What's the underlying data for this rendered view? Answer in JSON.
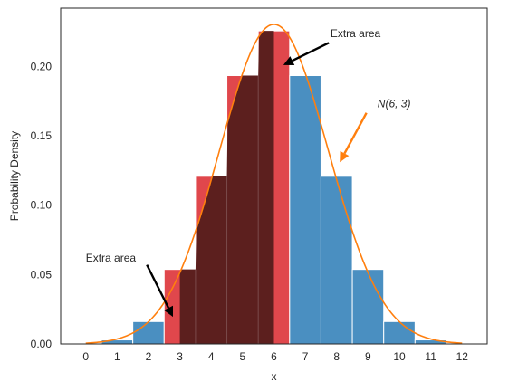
{
  "chart_data": {
    "type": "bar",
    "xlabel": "x",
    "ylabel": "Probability Density",
    "xlim": [
      -0.8,
      12.8
    ],
    "ylim": [
      0,
      0.242
    ],
    "xticks": [
      "0",
      "1",
      "2",
      "3",
      "4",
      "5",
      "6",
      "7",
      "8",
      "9",
      "10",
      "11",
      "12"
    ],
    "yticks": [
      "0.00",
      "0.05",
      "0.10",
      "0.15",
      "0.20"
    ],
    "grid": false,
    "bars": [
      {
        "x": 1,
        "value": 0.0029,
        "fill": "blue"
      },
      {
        "x": 2,
        "value": 0.0161,
        "fill": "blue"
      },
      {
        "x": 3,
        "value": 0.0537,
        "fill": "red-under-dark"
      },
      {
        "x": 4,
        "value": 0.1208,
        "fill": "red-under-dark"
      },
      {
        "x": 5,
        "value": 0.1934,
        "fill": "red-under-dark"
      },
      {
        "x": 6,
        "value": 0.2256,
        "fill": "red-under-dark"
      },
      {
        "x": 7,
        "value": 0.1934,
        "fill": "blue"
      },
      {
        "x": 8,
        "value": 0.1208,
        "fill": "blue"
      },
      {
        "x": 9,
        "value": 0.0537,
        "fill": "blue"
      },
      {
        "x": 10,
        "value": 0.0161,
        "fill": "blue"
      },
      {
        "x": 11,
        "value": 0.0029,
        "fill": "blue"
      }
    ],
    "red_strips": [
      {
        "from": 2.5,
        "to": 3.0
      },
      {
        "from": 6.0,
        "to": 6.5
      }
    ],
    "dark_region": {
      "from": 3.0,
      "to": 6.0
    },
    "normal_curve": {
      "mean": 6,
      "variance": 3,
      "from": 0,
      "to": 12
    },
    "colors": {
      "bar_blue": "#4a8fc1",
      "bar_red": "#e0474c",
      "dark_overlay": "#5c1f1e",
      "curve": "#ff7f0e",
      "arrow_black": "#000000",
      "arrow_orange": "#ff7f0e"
    },
    "annotations": [
      {
        "text": "Extra area",
        "text_x": 7.8,
        "text_y": 0.221,
        "arrow_to_x": 6.3,
        "arrow_to_y": 0.201,
        "arrow_from_x": 7.75,
        "arrow_from_y": 0.217,
        "color": "black"
      },
      {
        "text": "Extra area",
        "text_x": 0.0,
        "text_y": 0.0595,
        "arrow_to_x": 2.78,
        "arrow_to_y": 0.0195,
        "arrow_from_x": 1.95,
        "arrow_from_y": 0.057,
        "color": "black"
      }
    ],
    "dist_label": {
      "text": "N(6, 3)",
      "text_x": 9.3,
      "text_y": 0.1705,
      "arrow_to_x": 8.1,
      "arrow_to_y": 0.131,
      "arrow_from_x": 8.95,
      "arrow_from_y": 0.1665,
      "color": "orange"
    }
  }
}
